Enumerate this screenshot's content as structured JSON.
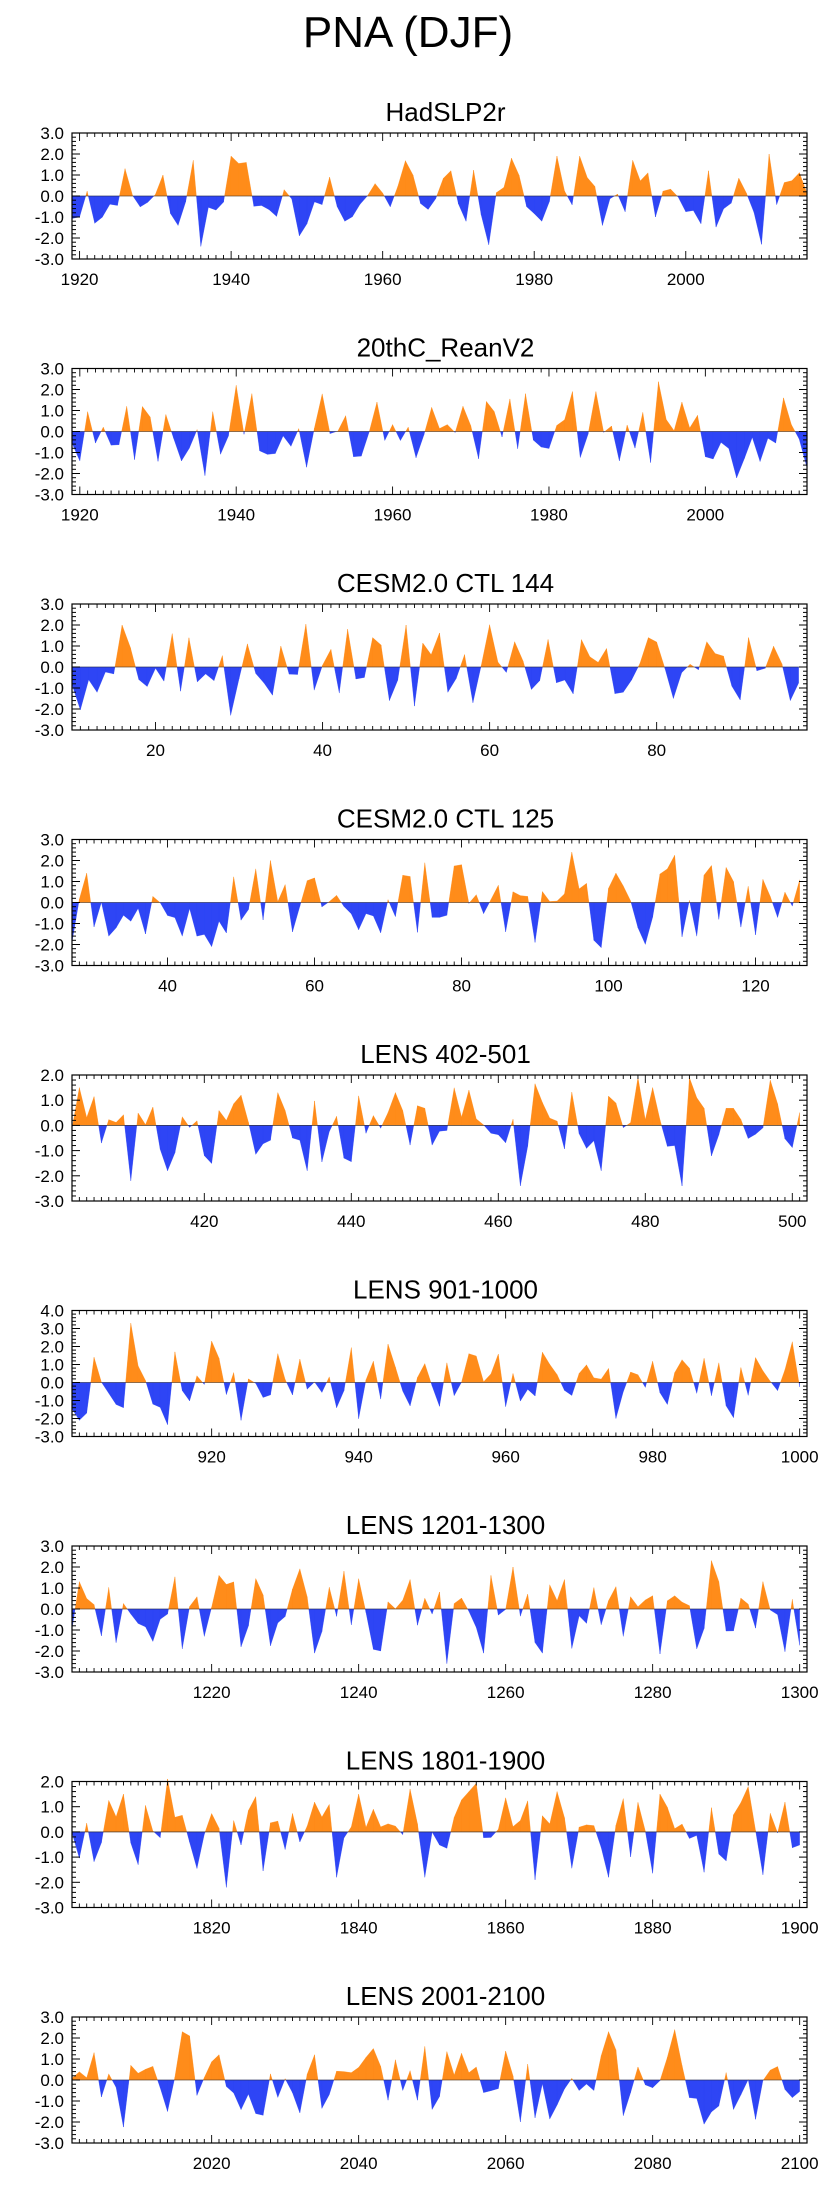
{
  "figure": {
    "title": "PNA (DJF)"
  },
  "colors": {
    "positive": "#FF8C1A",
    "negative": "#2E45F5",
    "axis": "#000000"
  },
  "chart_data": [
    {
      "type": "area",
      "title": "HadSLP2r",
      "xlim": [
        1919,
        2016
      ],
      "ylim": [
        -3,
        3
      ],
      "yticks": [
        3,
        2,
        1,
        0,
        -1,
        -2,
        -3
      ],
      "ytick_labels": [
        "3.0",
        "2.0",
        "1.0",
        "0.0",
        "-1.0",
        "-2.0",
        "-3.0"
      ],
      "xticks": [
        1920,
        1940,
        1960,
        1980,
        2000
      ],
      "xtick_labels": [
        "1920",
        "1940",
        "1960",
        "1980",
        "2000"
      ],
      "series_spec": {
        "start": 1919,
        "end": 2016,
        "seed": 11,
        "amp": 0.85
      },
      "anchors": [
        [
          1920,
          -1.0
        ],
        [
          1922,
          -1.3
        ],
        [
          1926,
          1.3
        ],
        [
          1929,
          -0.3
        ],
        [
          1931,
          1.0
        ],
        [
          1933,
          -1.4
        ],
        [
          1936,
          -2.4
        ],
        [
          1940,
          1.9
        ],
        [
          1942,
          1.6
        ],
        [
          1949,
          -1.9
        ],
        [
          1953,
          0.9
        ],
        [
          1955,
          -1.2
        ],
        [
          1964,
          1.0
        ],
        [
          1969,
          1.2
        ],
        [
          1971,
          -1.2
        ],
        [
          1977,
          1.8
        ],
        [
          1981,
          -1.2
        ],
        [
          1983,
          1.9
        ],
        [
          1986,
          1.9
        ],
        [
          1989,
          -1.4
        ],
        [
          1995,
          1.1
        ],
        [
          2003,
          1.2
        ],
        [
          2010,
          -2.3
        ],
        [
          2011,
          2.0
        ]
      ]
    },
    {
      "type": "area",
      "title": "20thC_ReanV2",
      "xlim": [
        1919,
        2013
      ],
      "ylim": [
        -3,
        3
      ],
      "yticks": [
        3,
        2,
        1,
        0,
        -1,
        -2,
        -3
      ],
      "ytick_labels": [
        "3.0",
        "2.0",
        "1.0",
        "0.0",
        "-1.0",
        "-2.0",
        "-3.0"
      ],
      "xticks": [
        1920,
        1940,
        1960,
        1980,
        2000
      ],
      "xtick_labels": [
        "1920",
        "1940",
        "1960",
        "1980",
        "2000"
      ],
      "series_spec": {
        "start": 1919,
        "end": 2013,
        "seed": 23,
        "amp": 0.85
      },
      "anchors": [
        [
          1920,
          -1.4
        ],
        [
          1926,
          1.2
        ],
        [
          1933,
          -1.4
        ],
        [
          1936,
          -2.1
        ],
        [
          1940,
          2.2
        ],
        [
          1942,
          1.8
        ],
        [
          1949,
          -1.7
        ],
        [
          1955,
          -1.2
        ],
        [
          1969,
          1.2
        ],
        [
          1971,
          -1.3
        ],
        [
          1977,
          1.8
        ],
        [
          1983,
          1.9
        ],
        [
          1986,
          1.9
        ],
        [
          1989,
          -1.4
        ],
        [
          1997,
          1.4
        ],
        [
          2000,
          -1.2
        ],
        [
          2010,
          1.6
        ]
      ]
    },
    {
      "type": "area",
      "title": "CESM2.0 CTL 144",
      "xlim": [
        10,
        98
      ],
      "ylim": [
        -3,
        3
      ],
      "yticks": [
        3,
        2,
        1,
        0,
        -1,
        -2,
        -3
      ],
      "ytick_labels": [
        "3.0",
        "2.0",
        "1.0",
        "0.0",
        "-1.0",
        "-2.0",
        "-3.0"
      ],
      "xticks": [
        20,
        40,
        60,
        80
      ],
      "xtick_labels": [
        "20",
        "40",
        "60",
        "80"
      ],
      "series_spec": {
        "start": 10,
        "end": 97,
        "seed": 37,
        "amp": 0.9
      },
      "anchors": [
        [
          13,
          -1.2
        ],
        [
          16,
          2.0
        ],
        [
          18,
          -0.6
        ],
        [
          29,
          -2.3
        ],
        [
          35,
          1.0
        ],
        [
          39,
          -1.1
        ],
        [
          43,
          1.8
        ],
        [
          46,
          1.4
        ],
        [
          48,
          -1.6
        ],
        [
          50,
          2.0
        ],
        [
          55,
          -1.2
        ],
        [
          58,
          -1.7
        ],
        [
          63,
          1.2
        ],
        [
          71,
          1.3
        ],
        [
          76,
          -1.2
        ],
        [
          79,
          1.4
        ],
        [
          82,
          -1.5
        ],
        [
          86,
          1.2
        ],
        [
          91,
          1.4
        ],
        [
          96,
          -1.6
        ]
      ]
    },
    {
      "type": "area",
      "title": "CESM2.0 CTL 125",
      "xlim": [
        27,
        127
      ],
      "ylim": [
        -3,
        3
      ],
      "yticks": [
        3,
        2,
        1,
        0,
        -1,
        -2,
        -3
      ],
      "ytick_labels": [
        "3.0",
        "2.0",
        "1.0",
        "0.0",
        "-1.0",
        "-2.0",
        "-3.0"
      ],
      "xticks": [
        40,
        60,
        80,
        100,
        120
      ],
      "xtick_labels": [
        "40",
        "60",
        "80",
        "100",
        "120"
      ],
      "series_spec": {
        "start": 27,
        "end": 126,
        "seed": 53,
        "amp": 0.9
      },
      "anchors": [
        [
          29,
          1.4
        ],
        [
          32,
          -1.6
        ],
        [
          37,
          -1.5
        ],
        [
          42,
          -1.6
        ],
        [
          46,
          -2.1
        ],
        [
          52,
          1.6
        ],
        [
          54,
          2.0
        ],
        [
          57,
          -1.4
        ],
        [
          66,
          -1.3
        ],
        [
          72,
          1.3
        ],
        [
          80,
          1.8
        ],
        [
          86,
          -1.4
        ],
        [
          90,
          -1.9
        ],
        [
          95,
          2.4
        ],
        [
          98,
          -1.8
        ],
        [
          101,
          1.4
        ],
        [
          104,
          -1.2
        ],
        [
          108,
          1.6
        ],
        [
          112,
          -1.6
        ],
        [
          117,
          1.0
        ],
        [
          121,
          1.1
        ]
      ]
    },
    {
      "type": "area",
      "title": "LENS 402-501",
      "xlim": [
        402,
        502
      ],
      "ylim": [
        -3,
        2
      ],
      "yticks": [
        2,
        1,
        0,
        -1,
        -2,
        -3
      ],
      "ytick_labels": [
        "2.0",
        "1.0",
        "0.0",
        "-1.0",
        "-2.0",
        "-3.0"
      ],
      "xticks": [
        420,
        440,
        460,
        480,
        500
      ],
      "xtick_labels": [
        "420",
        "440",
        "460",
        "480",
        "500"
      ],
      "series_spec": {
        "start": 402,
        "end": 501,
        "seed": 71,
        "amp": 0.75
      },
      "anchors": [
        [
          403,
          1.5
        ],
        [
          410,
          -2.2
        ],
        [
          415,
          -1.8
        ],
        [
          420,
          -1.2
        ],
        [
          425,
          1.2
        ],
        [
          430,
          1.3
        ],
        [
          434,
          -1.8
        ],
        [
          446,
          1.3
        ],
        [
          456,
          1.4
        ],
        [
          463,
          -2.4
        ],
        [
          474,
          -1.8
        ],
        [
          479,
          1.9
        ],
        [
          481,
          1.5
        ],
        [
          485,
          -2.4
        ],
        [
          486,
          1.9
        ],
        [
          497,
          1.8
        ]
      ]
    },
    {
      "type": "area",
      "title": "LENS 901-1000",
      "xlim": [
        901,
        1001
      ],
      "ylim": [
        -3,
        4
      ],
      "yticks": [
        4,
        3,
        2,
        1,
        0,
        -1,
        -2,
        -3
      ],
      "ytick_labels": [
        "4.0",
        "3.0",
        "2.0",
        "1.0",
        "0.0",
        "-1.0",
        "-2.0",
        "-3.0"
      ],
      "xticks": [
        920,
        940,
        960,
        980,
        1000
      ],
      "xtick_labels": [
        "920",
        "940",
        "960",
        "980",
        "1000"
      ],
      "series_spec": {
        "start": 901,
        "end": 1000,
        "seed": 97,
        "amp": 0.8
      },
      "anchors": [
        [
          902,
          -2.1
        ],
        [
          904,
          1.4
        ],
        [
          908,
          -1.4
        ],
        [
          909,
          3.3
        ],
        [
          915,
          1.7
        ],
        [
          920,
          2.3
        ],
        [
          924,
          -2.1
        ],
        [
          929,
          1.6
        ],
        [
          932,
          1.3
        ],
        [
          937,
          -1.4
        ],
        [
          947,
          -1.3
        ],
        [
          955,
          1.6
        ],
        [
          975,
          -2.0
        ],
        [
          990,
          -1.3
        ]
      ]
    },
    {
      "type": "area",
      "title": "LENS 1201-1300",
      "xlim": [
        1201,
        1301
      ],
      "ylim": [
        -3,
        3
      ],
      "yticks": [
        3,
        2,
        1,
        0,
        -1,
        -2,
        -3
      ],
      "ytick_labels": [
        "3.0",
        "2.0",
        "1.0",
        "0.0",
        "-1.0",
        "-2.0",
        "-3.0"
      ],
      "xticks": [
        1220,
        1240,
        1260,
        1280,
        1300
      ],
      "xtick_labels": [
        "1220",
        "1240",
        "1260",
        "1280",
        "1300"
      ],
      "series_spec": {
        "start": 1201,
        "end": 1300,
        "seed": 131,
        "amp": 0.9
      },
      "anchors": [
        [
          1202,
          1.3
        ],
        [
          1207,
          -1.6
        ],
        [
          1216,
          -1.9
        ],
        [
          1221,
          1.6
        ],
        [
          1234,
          -2.1
        ],
        [
          1238,
          1.8
        ],
        [
          1243,
          -2.0
        ],
        [
          1247,
          1.4
        ],
        [
          1252,
          -2.6
        ],
        [
          1257,
          -2.1
        ],
        [
          1261,
          2.0
        ],
        [
          1264,
          -1.6
        ],
        [
          1268,
          1.4
        ],
        [
          1276,
          -1.3
        ],
        [
          1286,
          -1.9
        ],
        [
          1288,
          2.3
        ],
        [
          1295,
          1.3
        ]
      ]
    },
    {
      "type": "area",
      "title": "LENS 1801-1900",
      "xlim": [
        1801,
        1901
      ],
      "ylim": [
        -3,
        2
      ],
      "yticks": [
        2,
        1,
        0,
        -1,
        -2,
        -3
      ],
      "ytick_labels": [
        "2.0",
        "1.0",
        "0.0",
        "-1.0",
        "-2.0",
        "-3.0"
      ],
      "xticks": [
        1820,
        1840,
        1860,
        1880,
        1900
      ],
      "xtick_labels": [
        "1820",
        "1840",
        "1860",
        "1880",
        "1900"
      ],
      "series_spec": {
        "start": 1801,
        "end": 1900,
        "seed": 151,
        "amp": 0.75
      },
      "anchors": [
        [
          1808,
          1.5
        ],
        [
          1810,
          -1.3
        ],
        [
          1822,
          -2.2
        ],
        [
          1826,
          1.4
        ],
        [
          1837,
          -1.8
        ],
        [
          1840,
          1.5
        ],
        [
          1847,
          1.7
        ],
        [
          1849,
          -1.8
        ],
        [
          1855,
          1.6
        ],
        [
          1864,
          -1.9
        ],
        [
          1867,
          1.6
        ],
        [
          1874,
          -1.8
        ],
        [
          1881,
          1.5
        ],
        [
          1887,
          -1.6
        ],
        [
          1893,
          1.8
        ],
        [
          1895,
          -1.7
        ]
      ]
    },
    {
      "type": "area",
      "title": "LENS 2001-2100",
      "xlim": [
        2001,
        2101
      ],
      "ylim": [
        -3,
        3
      ],
      "yticks": [
        3,
        2,
        1,
        0,
        -1,
        -2,
        -3
      ],
      "ytick_labels": [
        "3.0",
        "2.0",
        "1.0",
        "0.0",
        "-1.0",
        "-2.0",
        "-3.0"
      ],
      "xticks": [
        2020,
        2040,
        2060,
        2080,
        2100
      ],
      "xtick_labels": [
        "2020",
        "2040",
        "2060",
        "2080",
        "2100"
      ],
      "series_spec": {
        "start": 2001,
        "end": 2100,
        "seed": 173,
        "amp": 0.85
      },
      "anchors": [
        [
          2004,
          1.3
        ],
        [
          2014,
          -1.5
        ],
        [
          2017,
          2.1
        ],
        [
          2026,
          -1.6
        ],
        [
          2034,
          1.2
        ],
        [
          2042,
          1.5
        ],
        [
          2049,
          1.6
        ],
        [
          2062,
          -2.0
        ],
        [
          2064,
          -1.8
        ],
        [
          2074,
          2.3
        ],
        [
          2076,
          -1.7
        ],
        [
          2083,
          2.4
        ],
        [
          2087,
          -2.1
        ],
        [
          2091,
          -1.4
        ]
      ]
    }
  ]
}
